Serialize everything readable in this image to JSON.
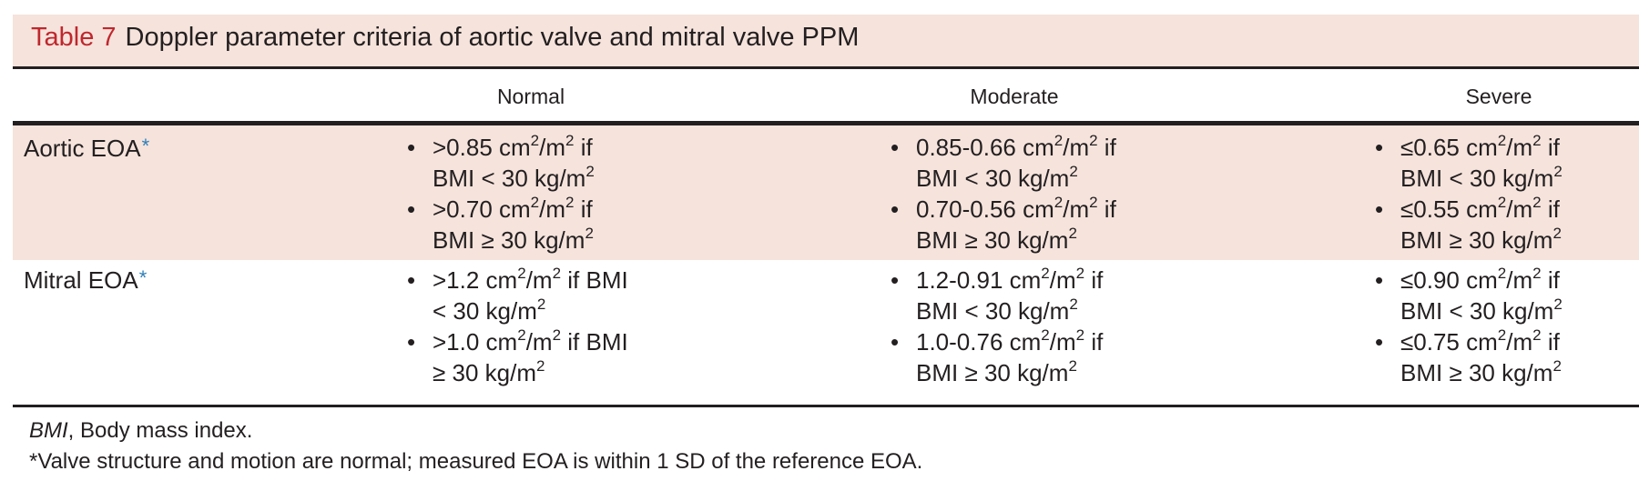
{
  "title": {
    "label": "Table 7",
    "text": "Doppler parameter criteria of aortic valve and mitral valve PPM"
  },
  "columns": [
    "Normal",
    "Moderate",
    "Severe"
  ],
  "rows": [
    {
      "label": "Aortic EOA",
      "marker": "*",
      "cells": [
        [
          [
            ">0.85 cm",
            "2",
            "/m",
            "2",
            " if"
          ],
          [
            "BMI < 30 kg/m",
            "2"
          ],
          [
            ">0.70 cm",
            "2",
            "/m",
            "2",
            " if"
          ],
          [
            "BMI ≥ 30 kg/m",
            "2"
          ]
        ],
        [
          [
            "0.85-0.66 cm",
            "2",
            "/m",
            "2",
            " if"
          ],
          [
            "BMI < 30 kg/m",
            "2"
          ],
          [
            "0.70-0.56 cm",
            "2",
            "/m",
            "2",
            " if"
          ],
          [
            "BMI ≥ 30 kg/m",
            "2"
          ]
        ],
        [
          [
            "≤0.65 cm",
            "2",
            "/m",
            "2",
            " if"
          ],
          [
            "BMI < 30 kg/m",
            "2"
          ],
          [
            "≤0.55 cm",
            "2",
            "/m",
            "2",
            " if"
          ],
          [
            "BMI ≥ 30 kg/m",
            "2"
          ]
        ]
      ]
    },
    {
      "label": "Mitral EOA",
      "marker": "*",
      "cells": [
        [
          [
            ">1.2 cm",
            "2",
            "/m",
            "2",
            " if BMI"
          ],
          [
            "< 30 kg/m",
            "2"
          ],
          [
            ">1.0 cm",
            "2",
            "/m",
            "2",
            " if BMI"
          ],
          [
            "≥ 30 kg/m",
            "2"
          ]
        ],
        [
          [
            "1.2-0.91 cm",
            "2",
            "/m",
            "2",
            " if"
          ],
          [
            "BMI < 30 kg/m",
            "2"
          ],
          [
            "1.0-0.76 cm",
            "2",
            "/m",
            "2",
            " if"
          ],
          [
            "BMI ≥ 30 kg/m",
            "2"
          ]
        ],
        [
          [
            "≤0.90 cm",
            "2",
            "/m",
            "2",
            " if"
          ],
          [
            "BMI < 30 kg/m",
            "2"
          ],
          [
            "≤0.75 cm",
            "2",
            "/m",
            "2",
            " if"
          ],
          [
            "BMI ≥ 30 kg/m",
            "2"
          ]
        ]
      ]
    }
  ],
  "footnotes": {
    "abbr_term": "BMI",
    "abbr_def": ", Body mass index.",
    "note": "*Valve structure and motion are normal; measured EOA is within 1 SD of the reference EOA."
  },
  "colors": {
    "band": "#f5e3dc",
    "title_label": "#c0272d",
    "marker": "#2e7fb8"
  }
}
